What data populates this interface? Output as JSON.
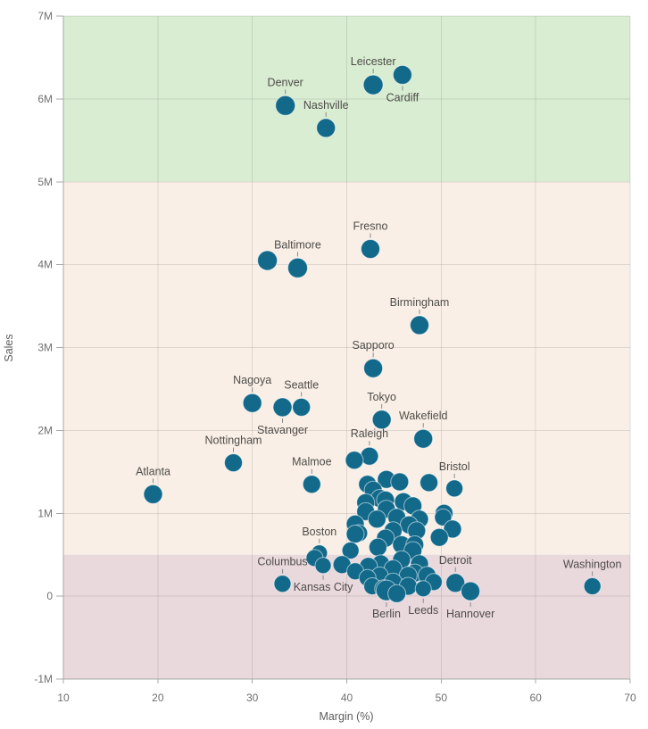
{
  "chart_data": {
    "type": "scatter",
    "title": "",
    "xlabel": "Margin (%)",
    "ylabel": "Sales",
    "xlim": [
      10,
      70
    ],
    "ylim_millions": [
      -1,
      7
    ],
    "x_ticks": [
      10,
      20,
      30,
      40,
      50,
      60,
      70
    ],
    "y_ticks": [
      {
        "value_m": 7,
        "label": "7M"
      },
      {
        "value_m": 6,
        "label": "6M"
      },
      {
        "value_m": 5,
        "label": "5M"
      },
      {
        "value_m": 4,
        "label": "4M"
      },
      {
        "value_m": 3,
        "label": "3M"
      },
      {
        "value_m": 2,
        "label": "2M"
      },
      {
        "value_m": 1,
        "label": "1M"
      },
      {
        "value_m": 0,
        "label": "0"
      },
      {
        "value_m": -1,
        "label": "-1M"
      }
    ],
    "grid": true,
    "legend": "none",
    "zones": [
      {
        "name": "high",
        "from_m": 5,
        "to_m": 7,
        "color": "#d8edd2"
      },
      {
        "name": "mid",
        "from_m": 0.5,
        "to_m": 5,
        "color": "#f9efe6"
      },
      {
        "name": "low",
        "from_m": -1,
        "to_m": 0.5,
        "color": "#e9d8dc"
      }
    ],
    "colors": {
      "bubble_fill": "#12698a",
      "bubble_stroke": "rgba(255,255,255,0.55)",
      "gridline": "rgba(99,99,99,0.18)",
      "axis_line": "#a8a8a8",
      "leader_tick": "#8a8a8a"
    },
    "labeled_points": [
      {
        "name": "Leicester",
        "margin": 42.8,
        "sales_m": 6.17,
        "r": 11,
        "label_pos": "above"
      },
      {
        "name": "Cardiff",
        "margin": 45.9,
        "sales_m": 6.29,
        "r": 10.5,
        "label_pos": "below"
      },
      {
        "name": "Denver",
        "margin": 33.5,
        "sales_m": 5.92,
        "r": 11,
        "label_pos": "above"
      },
      {
        "name": "Nashville",
        "margin": 37.8,
        "sales_m": 5.65,
        "r": 10.5,
        "label_pos": "above"
      },
      {
        "name": "Baltimore",
        "margin": 34.8,
        "sales_m": 3.96,
        "r": 11,
        "label_pos": "above"
      },
      {
        "name": "Fresno",
        "margin": 42.5,
        "sales_m": 4.19,
        "r": 10.5,
        "label_pos": "above"
      },
      {
        "name": "Birmingham",
        "margin": 47.7,
        "sales_m": 3.27,
        "r": 10.5,
        "label_pos": "above"
      },
      {
        "name": "Sapporo",
        "margin": 42.8,
        "sales_m": 2.75,
        "r": 10.5,
        "label_pos": "above"
      },
      {
        "name": "Nagoya",
        "margin": 30.0,
        "sales_m": 2.33,
        "r": 10.5,
        "label_pos": "above"
      },
      {
        "name": "Stavanger",
        "margin": 33.2,
        "sales_m": 2.28,
        "r": 10.5,
        "label_pos": "below"
      },
      {
        "name": "Seattle",
        "margin": 35.2,
        "sales_m": 2.28,
        "r": 10,
        "label_pos": "above"
      },
      {
        "name": "Tokyo",
        "margin": 43.7,
        "sales_m": 2.13,
        "r": 10.5,
        "label_pos": "above"
      },
      {
        "name": "Wakefield",
        "margin": 48.1,
        "sales_m": 1.9,
        "r": 10.5,
        "label_pos": "above"
      },
      {
        "name": "Nottingham",
        "margin": 28.0,
        "sales_m": 1.61,
        "r": 10,
        "label_pos": "above"
      },
      {
        "name": "Raleigh",
        "margin": 42.4,
        "sales_m": 1.69,
        "r": 10,
        "label_pos": "above"
      },
      {
        "name": "Malmoe",
        "margin": 36.3,
        "sales_m": 1.35,
        "r": 10,
        "label_pos": "above"
      },
      {
        "name": "Atlanta",
        "margin": 19.5,
        "sales_m": 1.23,
        "r": 10.5,
        "label_pos": "above"
      },
      {
        "name": "Bristol",
        "margin": 51.4,
        "sales_m": 1.3,
        "r": 9.5,
        "label_pos": "above"
      },
      {
        "name": "Boston",
        "margin": 37.1,
        "sales_m": 0.52,
        "r": 9,
        "label_pos": "above"
      },
      {
        "name": "Columbus",
        "margin": 33.2,
        "sales_m": 0.15,
        "r": 9.5,
        "label_pos": "above"
      },
      {
        "name": "Kansas City",
        "margin": 37.5,
        "sales_m": 0.37,
        "r": 9,
        "label_pos": "below"
      },
      {
        "name": "Berlin",
        "margin": 44.2,
        "sales_m": 0.07,
        "r": 11.5,
        "label_pos": "below"
      },
      {
        "name": "Leeds",
        "margin": 48.1,
        "sales_m": 0.09,
        "r": 9,
        "label_pos": "below"
      },
      {
        "name": "Hannover",
        "margin": 53.1,
        "sales_m": 0.06,
        "r": 10.5,
        "label_pos": "below"
      },
      {
        "name": "Detroit",
        "margin": 51.5,
        "sales_m": 0.16,
        "r": 10.5,
        "label_pos": "above"
      },
      {
        "name": "Washington",
        "margin": 66.0,
        "sales_m": 0.12,
        "r": 9.5,
        "label_pos": "above"
      }
    ],
    "unlabeled_points": [
      [
        31.6,
        4.05,
        11
      ],
      [
        40.8,
        1.64,
        10
      ],
      [
        42.2,
        1.35,
        10
      ],
      [
        44.2,
        1.41,
        10
      ],
      [
        45.6,
        1.38,
        10
      ],
      [
        48.7,
        1.37,
        10
      ],
      [
        42.8,
        1.28,
        10
      ],
      [
        43.5,
        1.18,
        10
      ],
      [
        44.1,
        1.16,
        10
      ],
      [
        42.0,
        1.13,
        10
      ],
      [
        46.0,
        1.14,
        10
      ],
      [
        47.0,
        1.09,
        10
      ],
      [
        44.2,
        1.05,
        10
      ],
      [
        42.0,
        1.02,
        10
      ],
      [
        50.3,
        1.0,
        10
      ],
      [
        50.2,
        0.95,
        9.5
      ],
      [
        45.3,
        0.95,
        10
      ],
      [
        43.2,
        0.93,
        10
      ],
      [
        47.7,
        0.93,
        10
      ],
      [
        40.9,
        0.87,
        10
      ],
      [
        46.6,
        0.86,
        10
      ],
      [
        51.2,
        0.81,
        10
      ],
      [
        44.9,
        0.79,
        10
      ],
      [
        47.4,
        0.79,
        10
      ],
      [
        40.9,
        0.75,
        10
      ],
      [
        41.3,
        0.76,
        9.5
      ],
      [
        49.8,
        0.71,
        10
      ],
      [
        44.1,
        0.7,
        10
      ],
      [
        45.8,
        0.62,
        10
      ],
      [
        47.2,
        0.62,
        10
      ],
      [
        43.3,
        0.59,
        10
      ],
      [
        47.0,
        0.55,
        10
      ],
      [
        40.4,
        0.55,
        9.5
      ],
      [
        36.6,
        0.46,
        9.5
      ],
      [
        45.8,
        0.44,
        10
      ],
      [
        43.6,
        0.39,
        10
      ],
      [
        47.7,
        0.39,
        10
      ],
      [
        39.5,
        0.38,
        10
      ],
      [
        42.3,
        0.36,
        10
      ],
      [
        44.9,
        0.33,
        10
      ],
      [
        40.9,
        0.3,
        9.5
      ],
      [
        47.2,
        0.28,
        10
      ],
      [
        46.5,
        0.25,
        10
      ],
      [
        48.5,
        0.25,
        10
      ],
      [
        43.5,
        0.25,
        9.5
      ],
      [
        42.2,
        0.22,
        9.5
      ],
      [
        44.9,
        0.17,
        10
      ],
      [
        49.2,
        0.17,
        9.5
      ],
      [
        46.5,
        0.12,
        10
      ],
      [
        42.7,
        0.12,
        9.5
      ],
      [
        43.9,
        0.09,
        10
      ],
      [
        45.3,
        0.03,
        10
      ]
    ]
  }
}
